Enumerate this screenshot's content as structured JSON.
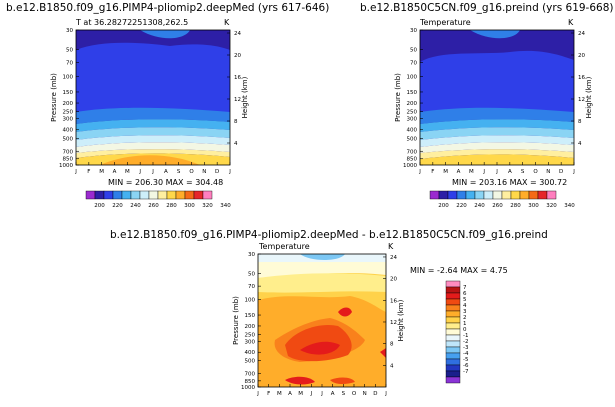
{
  "colors": {
    "abs_levels": [
      "#9b2bcf",
      "#2d1fa6",
      "#2f3fe8",
      "#2f7fe8",
      "#45b1f0",
      "#8ad4f4",
      "#cdeefa",
      "#f3f7e4",
      "#ffefa0",
      "#ffd84a",
      "#ffad2a",
      "#f56a17",
      "#e5262a",
      "#ff7fbf"
    ],
    "diff_levels": [
      "#8a34d6",
      "#1a1f8c",
      "#2237c0",
      "#2f6fe0",
      "#46a0f0",
      "#7cc7f4",
      "#bfe6fa",
      "#e9f6fb",
      "#fffbd6",
      "#ffee8c",
      "#ffd24a",
      "#ffad2a",
      "#f9811c",
      "#f04a12",
      "#e41b1b",
      "#b81414",
      "#ff8cc0"
    ]
  },
  "panels": {
    "left": {
      "title": "b.e12.B1850.f09_g16.PIMP4-pliomip2.deepMed (yrs 617-646)",
      "subtitle": "T  at  36.28272251308,262.5",
      "unit": "K",
      "stats": "MIN = 206.30  MAX = 304.48"
    },
    "right": {
      "title": "b.e12.B1850C5CN.f09_g16.preind (yrs 619-668)",
      "subtitle": "Temperature",
      "unit": "K",
      "stats": "MIN = 203.16  MAX = 300.72"
    },
    "diff": {
      "title": "b.e12.B1850.f09_g16.PIMP4-pliomip2.deepMed  -  b.e12.B1850C5CN.f09_g16.preind",
      "subtitle": "Temperature",
      "unit": "K",
      "stats": "MIN =   -2.64  MAX =    4.75"
    }
  },
  "chart_data": [
    {
      "type": "heatmap",
      "title": "b.e12.B1850.f09_g16.PIMP4-pliomip2.deepMed (yrs 617-646)",
      "subtitle": "T  at  36.28272251308,262.5",
      "x": [
        "J",
        "F",
        "M",
        "A",
        "M",
        "J",
        "J",
        "A",
        "S",
        "O",
        "N",
        "D",
        "J"
      ],
      "y_pressure_ticks": [
        "30",
        "50",
        "70",
        "100",
        "150",
        "200",
        "250",
        "300",
        "400",
        "500",
        "700",
        "850",
        "1000"
      ],
      "y_height_ticks": [
        "4",
        "8",
        "12",
        "16",
        "20",
        "24"
      ],
      "ylabel": "Pressure (mb)",
      "ylabel_right": "Height (km)",
      "unit": "K",
      "colorbar_labels": [
        "200",
        "220",
        "240",
        "260",
        "280",
        "300",
        "320",
        "340"
      ],
      "min": 206.3,
      "max": 304.48
    },
    {
      "type": "heatmap",
      "title": "b.e12.B1850C5CN.f09_g16.preind (yrs 619-668)",
      "subtitle": "Temperature",
      "x": [
        "J",
        "F",
        "M",
        "A",
        "M",
        "J",
        "J",
        "A",
        "S",
        "O",
        "N",
        "D",
        "J"
      ],
      "y_pressure_ticks": [
        "30",
        "50",
        "70",
        "100",
        "150",
        "200",
        "250",
        "300",
        "400",
        "500",
        "700",
        "850",
        "1000"
      ],
      "y_height_ticks": [
        "4",
        "8",
        "12",
        "16",
        "20",
        "24"
      ],
      "ylabel": "Pressure (mb)",
      "ylabel_right": "Height (km)",
      "unit": "K",
      "colorbar_labels": [
        "200",
        "220",
        "240",
        "260",
        "280",
        "300",
        "320",
        "340"
      ],
      "min": 203.16,
      "max": 300.72
    },
    {
      "type": "heatmap",
      "title": "b.e12.B1850.f09_g16.PIMP4-pliomip2.deepMed  -  b.e12.B1850C5CN.f09_g16.preind",
      "subtitle": "Temperature",
      "x": [
        "J",
        "F",
        "M",
        "A",
        "M",
        "J",
        "J",
        "A",
        "S",
        "O",
        "N",
        "D",
        "J"
      ],
      "y_pressure_ticks": [
        "30",
        "50",
        "70",
        "100",
        "150",
        "200",
        "250",
        "300",
        "400",
        "500",
        "700",
        "850",
        "1000"
      ],
      "y_height_ticks": [
        "4",
        "8",
        "12",
        "16",
        "20",
        "24"
      ],
      "ylabel": "Pressure (mb)",
      "ylabel_right": "Height (km)",
      "unit": "K",
      "colorbar_labels": [
        "7",
        "6",
        "5",
        "4",
        "3",
        "2",
        "1",
        "0",
        "-1",
        "-2",
        "-3",
        "-4",
        "-5",
        "-6",
        "-7"
      ],
      "min": -2.64,
      "max": 4.75
    }
  ]
}
